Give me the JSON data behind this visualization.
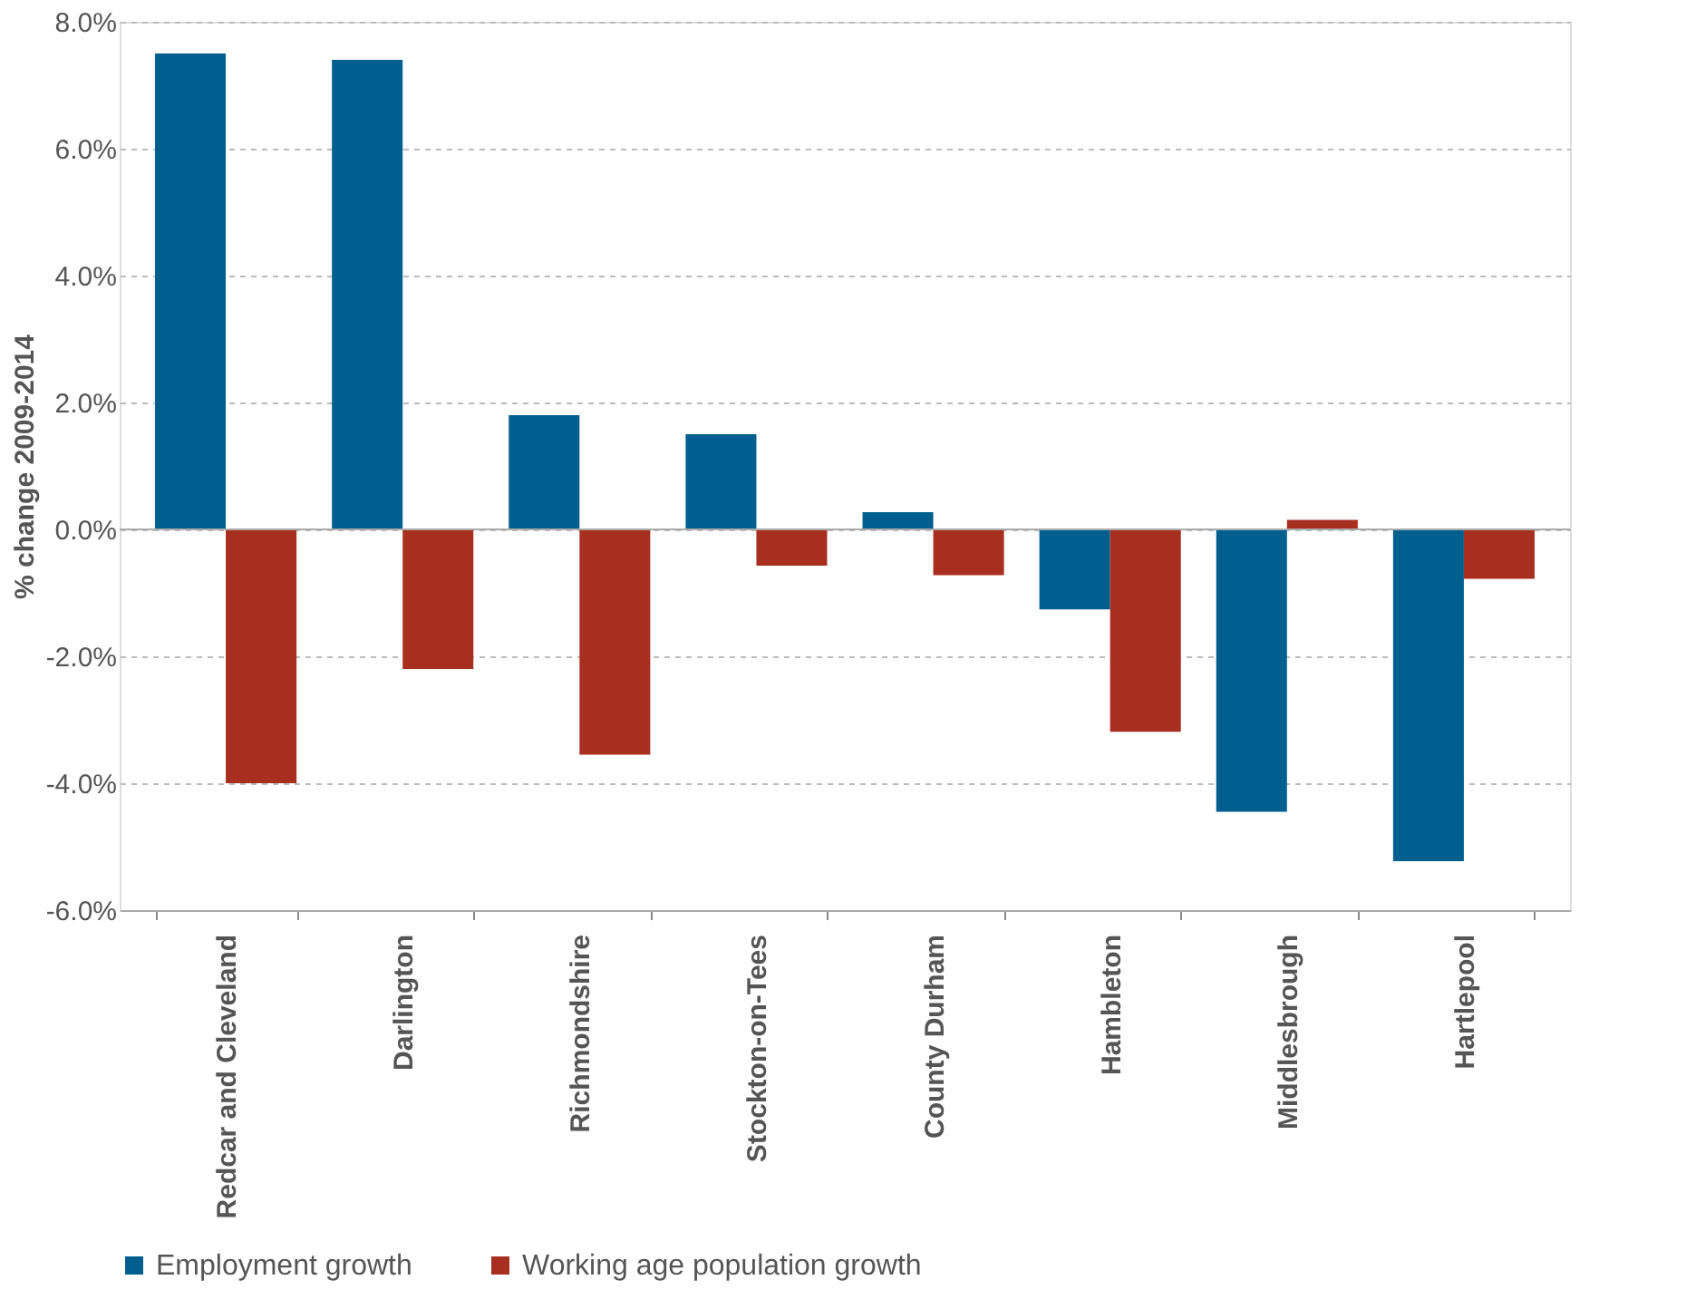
{
  "chart_data": {
    "type": "bar",
    "ylabel": "% change 2009-2014",
    "categories": [
      "Redcar and Cleveland",
      "Darlington",
      "Richmondshire",
      "Stockton-on-Tees",
      "County Durham",
      "Hambleton",
      "Middlesbrough",
      "Hartlepool"
    ],
    "series": [
      {
        "name": "Employment growth",
        "color": "#005f8e",
        "values": [
          7.5,
          7.4,
          1.8,
          1.5,
          0.27,
          -1.26,
          -4.45,
          -5.23
        ]
      },
      {
        "name": "Working age population growth",
        "color": "#a82e20",
        "values": [
          -4.0,
          -2.2,
          -3.55,
          -0.57,
          -0.72,
          -3.19,
          0.15,
          -0.78
        ]
      }
    ],
    "ylim": [
      -6,
      8
    ],
    "yticks": [
      {
        "value": -6,
        "label": "-6.0%"
      },
      {
        "value": -4,
        "label": "-4.0%"
      },
      {
        "value": -2,
        "label": "-2.0%"
      },
      {
        "value": 0,
        "label": "0.0%"
      },
      {
        "value": 2,
        "label": "2.0%"
      },
      {
        "value": 4,
        "label": "4.0%"
      },
      {
        "value": 6,
        "label": "6.0%"
      },
      {
        "value": 8,
        "label": "8.0%"
      }
    ],
    "grid": "y",
    "legend": "bottom"
  }
}
